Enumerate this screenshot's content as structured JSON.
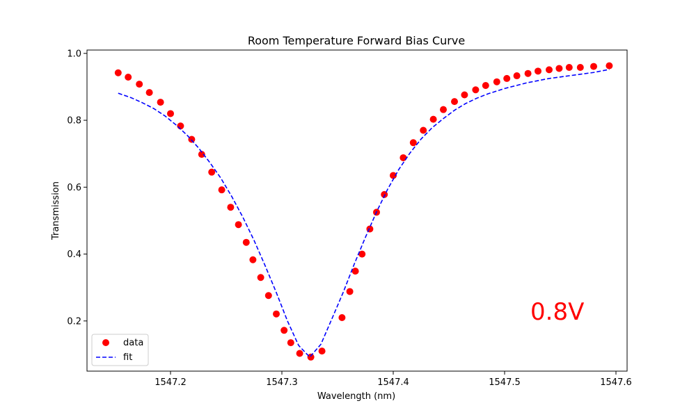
{
  "chart_data": {
    "type": "scatter",
    "title": "Room Temperature Forward Bias Curve",
    "xlabel": "Wavelength (nm)",
    "ylabel": "Transmission",
    "xlim": [
      1547.125,
      1547.61
    ],
    "ylim": [
      0.05,
      1.01
    ],
    "x_ticks": [
      1547.2,
      1547.3,
      1547.4,
      1547.5,
      1547.6
    ],
    "x_tick_labels": [
      "1547.2",
      "1547.3",
      "1547.4",
      "1547.5",
      "1547.6"
    ],
    "y_ticks": [
      0.2,
      0.4,
      0.6,
      0.8,
      1.0
    ],
    "y_tick_labels": [
      "0.2",
      "0.4",
      "0.6",
      "0.8",
      "1.0"
    ],
    "grid": false,
    "legend_position": "lower-left",
    "annotation": {
      "text": "0.8V",
      "color": "#ff0000"
    },
    "series": [
      {
        "name": "data",
        "kind": "points",
        "color": "#ff0000",
        "x": [
          1547.153,
          1547.162,
          1547.172,
          1547.181,
          1547.191,
          1547.2,
          1547.209,
          1547.219,
          1547.228,
          1547.237,
          1547.246,
          1547.254,
          1547.261,
          1547.268,
          1547.274,
          1547.281,
          1547.288,
          1547.295,
          1547.302,
          1547.308,
          1547.316,
          1547.326,
          1547.336,
          1547.354,
          1547.361,
          1547.366,
          1547.372,
          1547.379,
          1547.385,
          1547.392,
          1547.4,
          1547.409,
          1547.418,
          1547.427,
          1547.436,
          1547.445,
          1547.455,
          1547.464,
          1547.474,
          1547.483,
          1547.493,
          1547.502,
          1547.511,
          1547.521,
          1547.53,
          1547.54,
          1547.549,
          1547.558,
          1547.568,
          1547.58,
          1547.594
        ],
        "y": [
          0.942,
          0.929,
          0.908,
          0.883,
          0.854,
          0.82,
          0.783,
          0.743,
          0.698,
          0.645,
          0.592,
          0.54,
          0.488,
          0.435,
          0.383,
          0.33,
          0.276,
          0.221,
          0.172,
          0.135,
          0.103,
          0.092,
          0.11,
          0.21,
          0.288,
          0.349,
          0.4,
          0.475,
          0.525,
          0.578,
          0.635,
          0.688,
          0.733,
          0.77,
          0.803,
          0.832,
          0.856,
          0.876,
          0.891,
          0.904,
          0.915,
          0.925,
          0.933,
          0.94,
          0.947,
          0.951,
          0.955,
          0.958,
          0.958,
          0.961,
          0.963
        ]
      },
      {
        "name": "fit",
        "kind": "dashed-line",
        "color": "#0000ff",
        "x": [
          1547.153,
          1547.165,
          1547.175,
          1547.185,
          1547.195,
          1547.205,
          1547.215,
          1547.225,
          1547.235,
          1547.245,
          1547.255,
          1547.265,
          1547.275,
          1547.285,
          1547.295,
          1547.305,
          1547.315,
          1547.325,
          1547.335,
          1547.345,
          1547.355,
          1547.365,
          1547.375,
          1547.385,
          1547.395,
          1547.405,
          1547.415,
          1547.425,
          1547.435,
          1547.445,
          1547.455,
          1547.465,
          1547.475,
          1547.485,
          1547.5,
          1547.52,
          1547.54,
          1547.56,
          1547.58,
          1547.594
        ],
        "y": [
          0.881,
          0.867,
          0.852,
          0.835,
          0.813,
          0.786,
          0.755,
          0.718,
          0.675,
          0.628,
          0.572,
          0.51,
          0.441,
          0.365,
          0.285,
          0.2,
          0.127,
          0.092,
          0.13,
          0.207,
          0.285,
          0.37,
          0.45,
          0.526,
          0.594,
          0.653,
          0.702,
          0.744,
          0.778,
          0.805,
          0.83,
          0.85,
          0.866,
          0.879,
          0.895,
          0.912,
          0.925,
          0.934,
          0.943,
          0.952
        ]
      }
    ]
  }
}
